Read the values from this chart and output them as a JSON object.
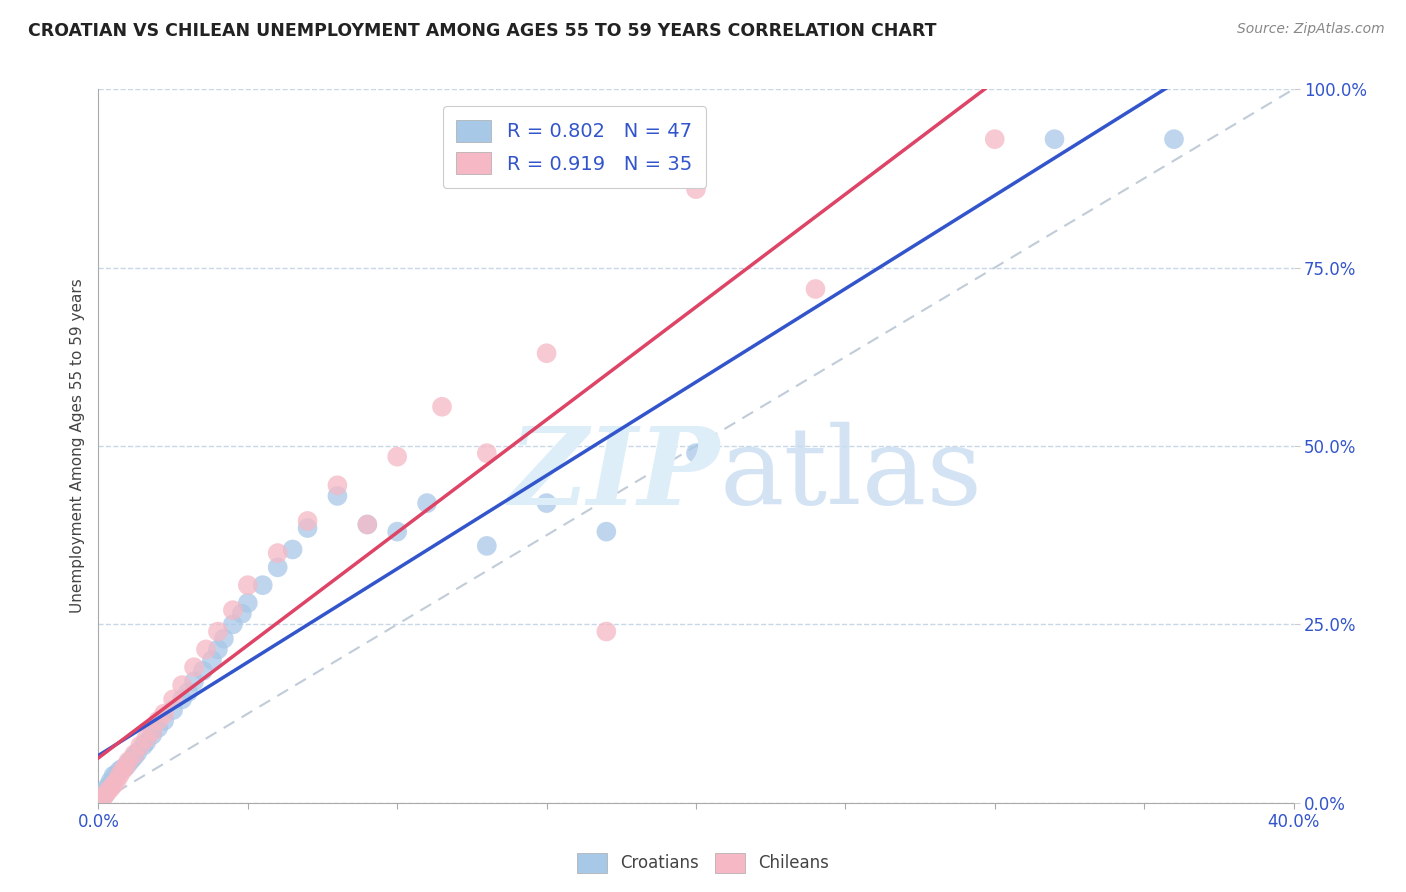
{
  "title": "CROATIAN VS CHILEAN UNEMPLOYMENT AMONG AGES 55 TO 59 YEARS CORRELATION CHART",
  "source": "Source: ZipAtlas.com",
  "ylabel": "Unemployment Among Ages 55 to 59 years",
  "xlim": [
    0,
    0.4
  ],
  "ylim": [
    0,
    1.0
  ],
  "xticks": [
    0.0,
    0.05,
    0.1,
    0.15,
    0.2,
    0.25,
    0.3,
    0.35,
    0.4
  ],
  "yticks": [
    0.0,
    0.25,
    0.5,
    0.75,
    1.0
  ],
  "ytick_labels": [
    "0.0%",
    "25.0%",
    "50.0%",
    "75.0%",
    "100.0%"
  ],
  "xtick_labels_show": [
    "0.0%",
    "",
    "",
    "",
    "",
    "",
    "",
    "",
    "40.0%"
  ],
  "blue_color": "#a8c8e8",
  "pink_color": "#f5b8c4",
  "blue_line_color": "#3355cc",
  "pink_line_color": "#dd4466",
  "ref_line_color": "#c0ccd8",
  "legend_r_blue": "R = 0.802",
  "legend_n_blue": "N = 47",
  "legend_r_pink": "R = 0.919",
  "legend_n_pink": "N = 35",
  "croatians_x": [
    0.001,
    0.002,
    0.002,
    0.003,
    0.003,
    0.004,
    0.004,
    0.005,
    0.005,
    0.006,
    0.007,
    0.008,
    0.009,
    0.01,
    0.011,
    0.012,
    0.013,
    0.015,
    0.016,
    0.018,
    0.02,
    0.022,
    0.025,
    0.028,
    0.03,
    0.032,
    0.035,
    0.038,
    0.04,
    0.042,
    0.045,
    0.048,
    0.05,
    0.055,
    0.06,
    0.065,
    0.07,
    0.08,
    0.09,
    0.1,
    0.11,
    0.13,
    0.15,
    0.17,
    0.2,
    0.32,
    0.36
  ],
  "croatians_y": [
    0.005,
    0.01,
    0.015,
    0.018,
    0.022,
    0.025,
    0.03,
    0.032,
    0.038,
    0.04,
    0.045,
    0.048,
    0.05,
    0.055,
    0.06,
    0.065,
    0.07,
    0.08,
    0.085,
    0.095,
    0.105,
    0.115,
    0.13,
    0.145,
    0.155,
    0.17,
    0.185,
    0.2,
    0.215,
    0.23,
    0.25,
    0.265,
    0.28,
    0.305,
    0.33,
    0.355,
    0.385,
    0.43,
    0.39,
    0.38,
    0.42,
    0.36,
    0.42,
    0.38,
    0.49,
    0.93,
    0.93
  ],
  "chileans_x": [
    0.001,
    0.002,
    0.003,
    0.004,
    0.005,
    0.006,
    0.007,
    0.008,
    0.009,
    0.01,
    0.012,
    0.014,
    0.016,
    0.018,
    0.02,
    0.022,
    0.025,
    0.028,
    0.032,
    0.036,
    0.04,
    0.045,
    0.05,
    0.06,
    0.07,
    0.08,
    0.09,
    0.1,
    0.115,
    0.13,
    0.15,
    0.17,
    0.2,
    0.24,
    0.3
  ],
  "chileans_y": [
    0.005,
    0.01,
    0.015,
    0.02,
    0.025,
    0.03,
    0.038,
    0.045,
    0.05,
    0.058,
    0.068,
    0.08,
    0.09,
    0.1,
    0.115,
    0.125,
    0.145,
    0.165,
    0.19,
    0.215,
    0.24,
    0.27,
    0.305,
    0.35,
    0.395,
    0.445,
    0.39,
    0.485,
    0.555,
    0.49,
    0.63,
    0.24,
    0.86,
    0.72,
    0.93
  ]
}
